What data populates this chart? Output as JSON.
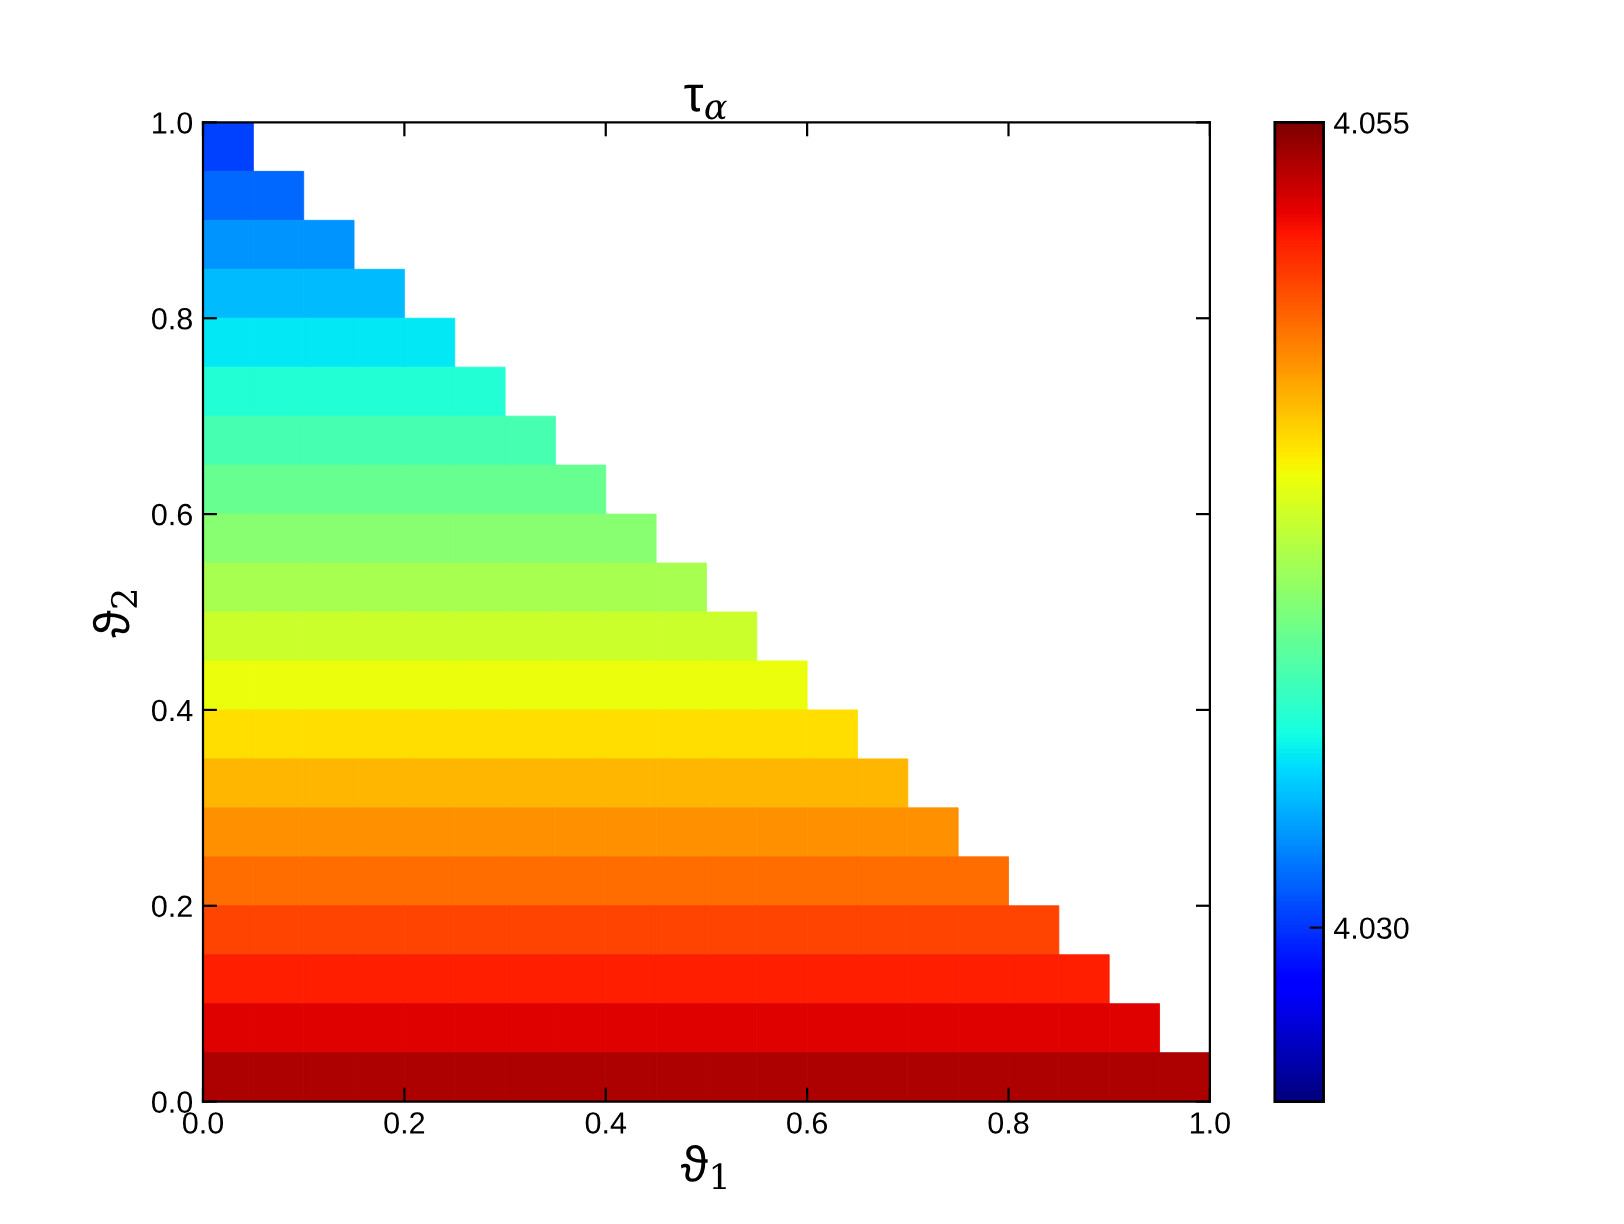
{
  "chart_data": {
    "type": "heatmap",
    "title": "τ$_{α}$",
    "xlabel": "ϑ$_{1}$",
    "ylabel": "ϑ$_{2}$",
    "xlim": [
      0,
      1
    ],
    "ylim": [
      0,
      1
    ],
    "xticks": [
      {
        "value": 0,
        "label": "0.0"
      },
      {
        "value": 0.2,
        "label": "0.2"
      },
      {
        "value": 0.4,
        "label": "0.4"
      },
      {
        "value": 0.6,
        "label": "0.6"
      },
      {
        "value": 0.8,
        "label": "0.8"
      },
      {
        "value": 1,
        "label": "1.0"
      }
    ],
    "yticks": [
      {
        "value": 0,
        "label": "0.0"
      },
      {
        "value": 0.2,
        "label": "0.2"
      },
      {
        "value": 0.4,
        "label": "0.4"
      },
      {
        "value": 0.6,
        "label": "0.6"
      },
      {
        "value": 0.8,
        "label": "0.8"
      },
      {
        "value": 1,
        "label": "1.0"
      }
    ],
    "clim": [
      4.0246,
      4.055
    ],
    "cticks": [
      {
        "value": 4.03,
        "label": "4.030"
      },
      {
        "value": 4.055,
        "label": "4.055"
      }
    ],
    "cells": [
      [
        4.0304,
        null,
        null,
        null,
        null,
        null,
        null,
        null,
        null,
        null,
        null,
        null,
        null,
        null,
        null,
        null,
        null,
        null,
        null,
        null
      ],
      [
        4.0316,
        4.0316,
        null,
        null,
        null,
        null,
        null,
        null,
        null,
        null,
        null,
        null,
        null,
        null,
        null,
        null,
        null,
        null,
        null,
        null
      ],
      [
        4.0328,
        4.0328,
        4.0328,
        null,
        null,
        null,
        null,
        null,
        null,
        null,
        null,
        null,
        null,
        null,
        null,
        null,
        null,
        null,
        null,
        null
      ],
      [
        4.0341,
        4.0341,
        4.0341,
        4.0341,
        null,
        null,
        null,
        null,
        null,
        null,
        null,
        null,
        null,
        null,
        null,
        null,
        null,
        null,
        null,
        null
      ],
      [
        4.0353,
        4.0353,
        4.0353,
        4.0353,
        4.0353,
        null,
        null,
        null,
        null,
        null,
        null,
        null,
        null,
        null,
        null,
        null,
        null,
        null,
        null,
        null
      ],
      [
        4.0365,
        4.0365,
        4.0365,
        4.0365,
        4.0365,
        4.0365,
        null,
        null,
        null,
        null,
        null,
        null,
        null,
        null,
        null,
        null,
        null,
        null,
        null,
        null
      ],
      [
        4.0378,
        4.0378,
        4.0378,
        4.0378,
        4.0378,
        4.0378,
        4.0378,
        null,
        null,
        null,
        null,
        null,
        null,
        null,
        null,
        null,
        null,
        null,
        null,
        null
      ],
      [
        4.039,
        4.039,
        4.039,
        4.039,
        4.039,
        4.039,
        4.039,
        4.039,
        null,
        null,
        null,
        null,
        null,
        null,
        null,
        null,
        null,
        null,
        null,
        null
      ],
      [
        4.0402,
        4.0402,
        4.0402,
        4.0402,
        4.0402,
        4.0402,
        4.0402,
        4.0402,
        4.0402,
        null,
        null,
        null,
        null,
        null,
        null,
        null,
        null,
        null,
        null,
        null
      ],
      [
        4.0414,
        4.0414,
        4.0414,
        4.0414,
        4.0414,
        4.0414,
        4.0414,
        4.0414,
        4.0414,
        4.0414,
        null,
        null,
        null,
        null,
        null,
        null,
        null,
        null,
        null,
        null
      ],
      [
        4.0427,
        4.0427,
        4.0427,
        4.0427,
        4.0427,
        4.0427,
        4.0427,
        4.0427,
        4.0427,
        4.0427,
        4.0427,
        null,
        null,
        null,
        null,
        null,
        null,
        null,
        null,
        null
      ],
      [
        4.0439,
        4.0439,
        4.0439,
        4.0439,
        4.0439,
        4.0439,
        4.0439,
        4.0439,
        4.0439,
        4.0439,
        4.0439,
        4.0439,
        null,
        null,
        null,
        null,
        null,
        null,
        null,
        null
      ],
      [
        4.0451,
        4.0451,
        4.0451,
        4.0451,
        4.0451,
        4.0451,
        4.0451,
        4.0451,
        4.0451,
        4.0451,
        4.0451,
        4.0451,
        4.0451,
        null,
        null,
        null,
        null,
        null,
        null,
        null
      ],
      [
        4.0464,
        4.0464,
        4.0464,
        4.0464,
        4.0464,
        4.0464,
        4.0464,
        4.0464,
        4.0464,
        4.0464,
        4.0464,
        4.0464,
        4.0464,
        4.0464,
        null,
        null,
        null,
        null,
        null,
        null
      ],
      [
        4.0476,
        4.0476,
        4.0476,
        4.0476,
        4.0476,
        4.0476,
        4.0476,
        4.0476,
        4.0476,
        4.0476,
        4.0476,
        4.0476,
        4.0476,
        4.0476,
        4.0476,
        null,
        null,
        null,
        null,
        null
      ],
      [
        4.0488,
        4.0488,
        4.0488,
        4.0488,
        4.0488,
        4.0488,
        4.0488,
        4.0488,
        4.0488,
        4.0488,
        4.0488,
        4.0488,
        4.0488,
        4.0488,
        4.0488,
        4.0488,
        null,
        null,
        null,
        null
      ],
      [
        4.0501,
        4.0501,
        4.0501,
        4.0501,
        4.0501,
        4.0501,
        4.0501,
        4.0501,
        4.0501,
        4.0501,
        4.0501,
        4.0501,
        4.0501,
        4.0501,
        4.0501,
        4.0501,
        4.0501,
        null,
        null,
        null
      ],
      [
        4.0513,
        4.0513,
        4.0513,
        4.0513,
        4.0513,
        4.0513,
        4.0513,
        4.0513,
        4.0513,
        4.0513,
        4.0513,
        4.0513,
        4.0513,
        4.0513,
        4.0513,
        4.0513,
        4.0513,
        4.0513,
        null,
        null
      ],
      [
        4.0525,
        4.0525,
        4.0525,
        4.0525,
        4.0525,
        4.0525,
        4.0525,
        4.0525,
        4.0525,
        4.0525,
        4.0525,
        4.0525,
        4.0525,
        4.0525,
        4.0525,
        4.0525,
        4.0525,
        4.0525,
        4.0525,
        null
      ],
      [
        4.0538,
        4.0538,
        4.0538,
        4.0538,
        4.0538,
        4.0538,
        4.0538,
        4.0538,
        4.0538,
        4.0538,
        4.0538,
        4.0538,
        4.0538,
        4.0538,
        4.0538,
        4.0538,
        4.0538,
        4.0538,
        4.0538,
        4.0538
      ]
    ]
  }
}
